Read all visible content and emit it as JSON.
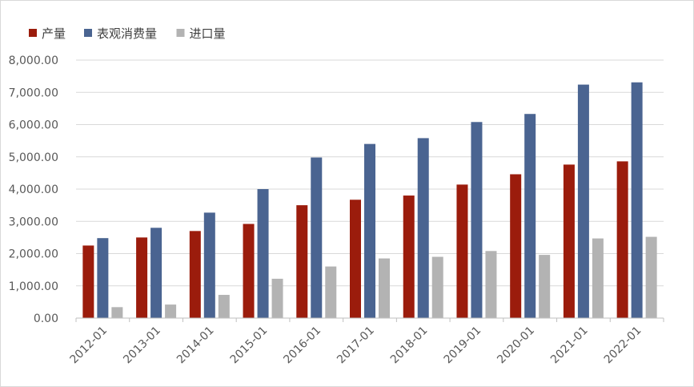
{
  "chart_data": {
    "type": "bar",
    "title": "",
    "xlabel": "",
    "ylabel": "",
    "categories": [
      "2012-01",
      "2013-01",
      "2014-01",
      "2015-01",
      "2016-01",
      "2017-01",
      "2018-01",
      "2019-01",
      "2020-01",
      "2021-01",
      "2022-01"
    ],
    "series": [
      {
        "name": "产量",
        "color": "#9b1c0c",
        "values": [
          2250,
          2500,
          2700,
          2920,
          3500,
          3670,
          3800,
          4140,
          4460,
          4760,
          4860
        ]
      },
      {
        "name": "表观消费量",
        "color": "#4a6491",
        "values": [
          2480,
          2800,
          3270,
          4000,
          4980,
          5400,
          5580,
          6080,
          6330,
          7240,
          7310
        ]
      },
      {
        "name": "进口量",
        "color": "#b3b3b3",
        "values": [
          340,
          420,
          720,
          1220,
          1600,
          1850,
          1900,
          2080,
          1960,
          2470,
          2520
        ]
      }
    ],
    "ylim": [
      0,
      8000
    ],
    "yticks": [
      0,
      1000,
      2000,
      3000,
      4000,
      5000,
      6000,
      7000,
      8000
    ],
    "ytick_labels": [
      "0.00",
      "1,000.00",
      "2,000.00",
      "3,000.00",
      "4,000.00",
      "5,000.00",
      "6,000.00",
      "7,000.00",
      "8,000.00"
    ],
    "grid": "horizontal",
    "legend_position": "top-left"
  }
}
